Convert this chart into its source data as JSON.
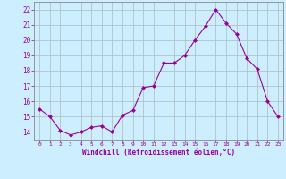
{
  "x": [
    0,
    1,
    2,
    3,
    4,
    5,
    6,
    7,
    8,
    9,
    10,
    11,
    12,
    13,
    14,
    15,
    16,
    17,
    18,
    19,
    20,
    21,
    22,
    23
  ],
  "y": [
    15.5,
    15.0,
    14.1,
    13.8,
    14.0,
    14.3,
    14.4,
    14.0,
    15.1,
    15.4,
    16.9,
    17.0,
    18.5,
    18.5,
    19.0,
    20.0,
    20.9,
    22.0,
    21.1,
    20.4,
    18.8,
    18.1,
    16.0,
    15.0
  ],
  "ylim": [
    13.5,
    22.5
  ],
  "yticks": [
    14,
    15,
    16,
    17,
    18,
    19,
    20,
    21,
    22
  ],
  "xticks": [
    0,
    1,
    2,
    3,
    4,
    5,
    6,
    7,
    8,
    9,
    10,
    11,
    12,
    13,
    14,
    15,
    16,
    17,
    18,
    19,
    20,
    21,
    22,
    23
  ],
  "xlabel": "Windchill (Refroidissement éolien,°C)",
  "line_color": "#990099",
  "marker": "D",
  "marker_size": 2,
  "bg_color": "#cceeff",
  "grid_color": "#aabbbb",
  "tick_color": "#990099",
  "label_color": "#990099",
  "figsize": [
    3.2,
    2.0
  ],
  "dpi": 100
}
